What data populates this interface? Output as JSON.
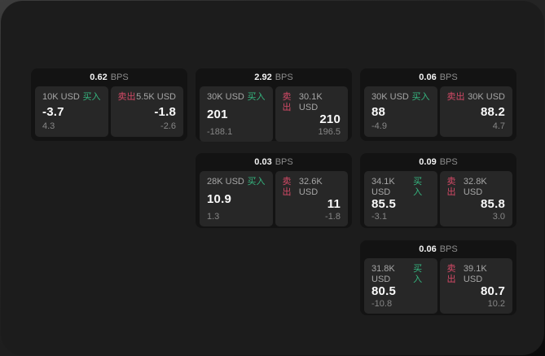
{
  "labels": {
    "bps_unit": "BPS",
    "buy": "买入",
    "sell": "卖出"
  },
  "colors": {
    "buy_green": "#35b57f",
    "sell_red": "#d44a67",
    "panel_bg": "#1c1c1c",
    "card_bg": "#131313",
    "tile_bg": "#272727"
  },
  "cards": [
    {
      "row": 1,
      "col": 1,
      "bps": "0.62",
      "buy": {
        "amount": "10K USD",
        "value": "-3.7",
        "delta": "4.3"
      },
      "sell": {
        "amount": "5.5K USD",
        "value": "-1.8",
        "delta": "-2.6"
      }
    },
    {
      "row": 1,
      "col": 2,
      "bps": "2.92",
      "buy": {
        "amount": "30K USD",
        "value": "201",
        "delta": "-188.1"
      },
      "sell": {
        "amount": "30.1K USD",
        "value": "210",
        "delta": "196.5"
      }
    },
    {
      "row": 1,
      "col": 3,
      "bps": "0.06",
      "buy": {
        "amount": "30K USD",
        "value": "88",
        "delta": "-4.9"
      },
      "sell": {
        "amount": "30K USD",
        "value": "88.2",
        "delta": "4.7"
      }
    },
    {
      "row": 2,
      "col": 2,
      "bps": "0.03",
      "buy": {
        "amount": "28K USD",
        "value": "10.9",
        "delta": "1.3"
      },
      "sell": {
        "amount": "32.6K USD",
        "value": "11",
        "delta": "-1.8"
      }
    },
    {
      "row": 2,
      "col": 3,
      "bps": "0.09",
      "buy": {
        "amount": "34.1K USD",
        "value": "85.5",
        "delta": "-3.1"
      },
      "sell": {
        "amount": "32.8K USD",
        "value": "85.8",
        "delta": "3.0"
      }
    },
    {
      "row": 3,
      "col": 3,
      "bps": "0.06",
      "buy": {
        "amount": "31.8K USD",
        "value": "80.5",
        "delta": "-10.8"
      },
      "sell": {
        "amount": "39.1K USD",
        "value": "80.7",
        "delta": "10.2"
      }
    }
  ]
}
